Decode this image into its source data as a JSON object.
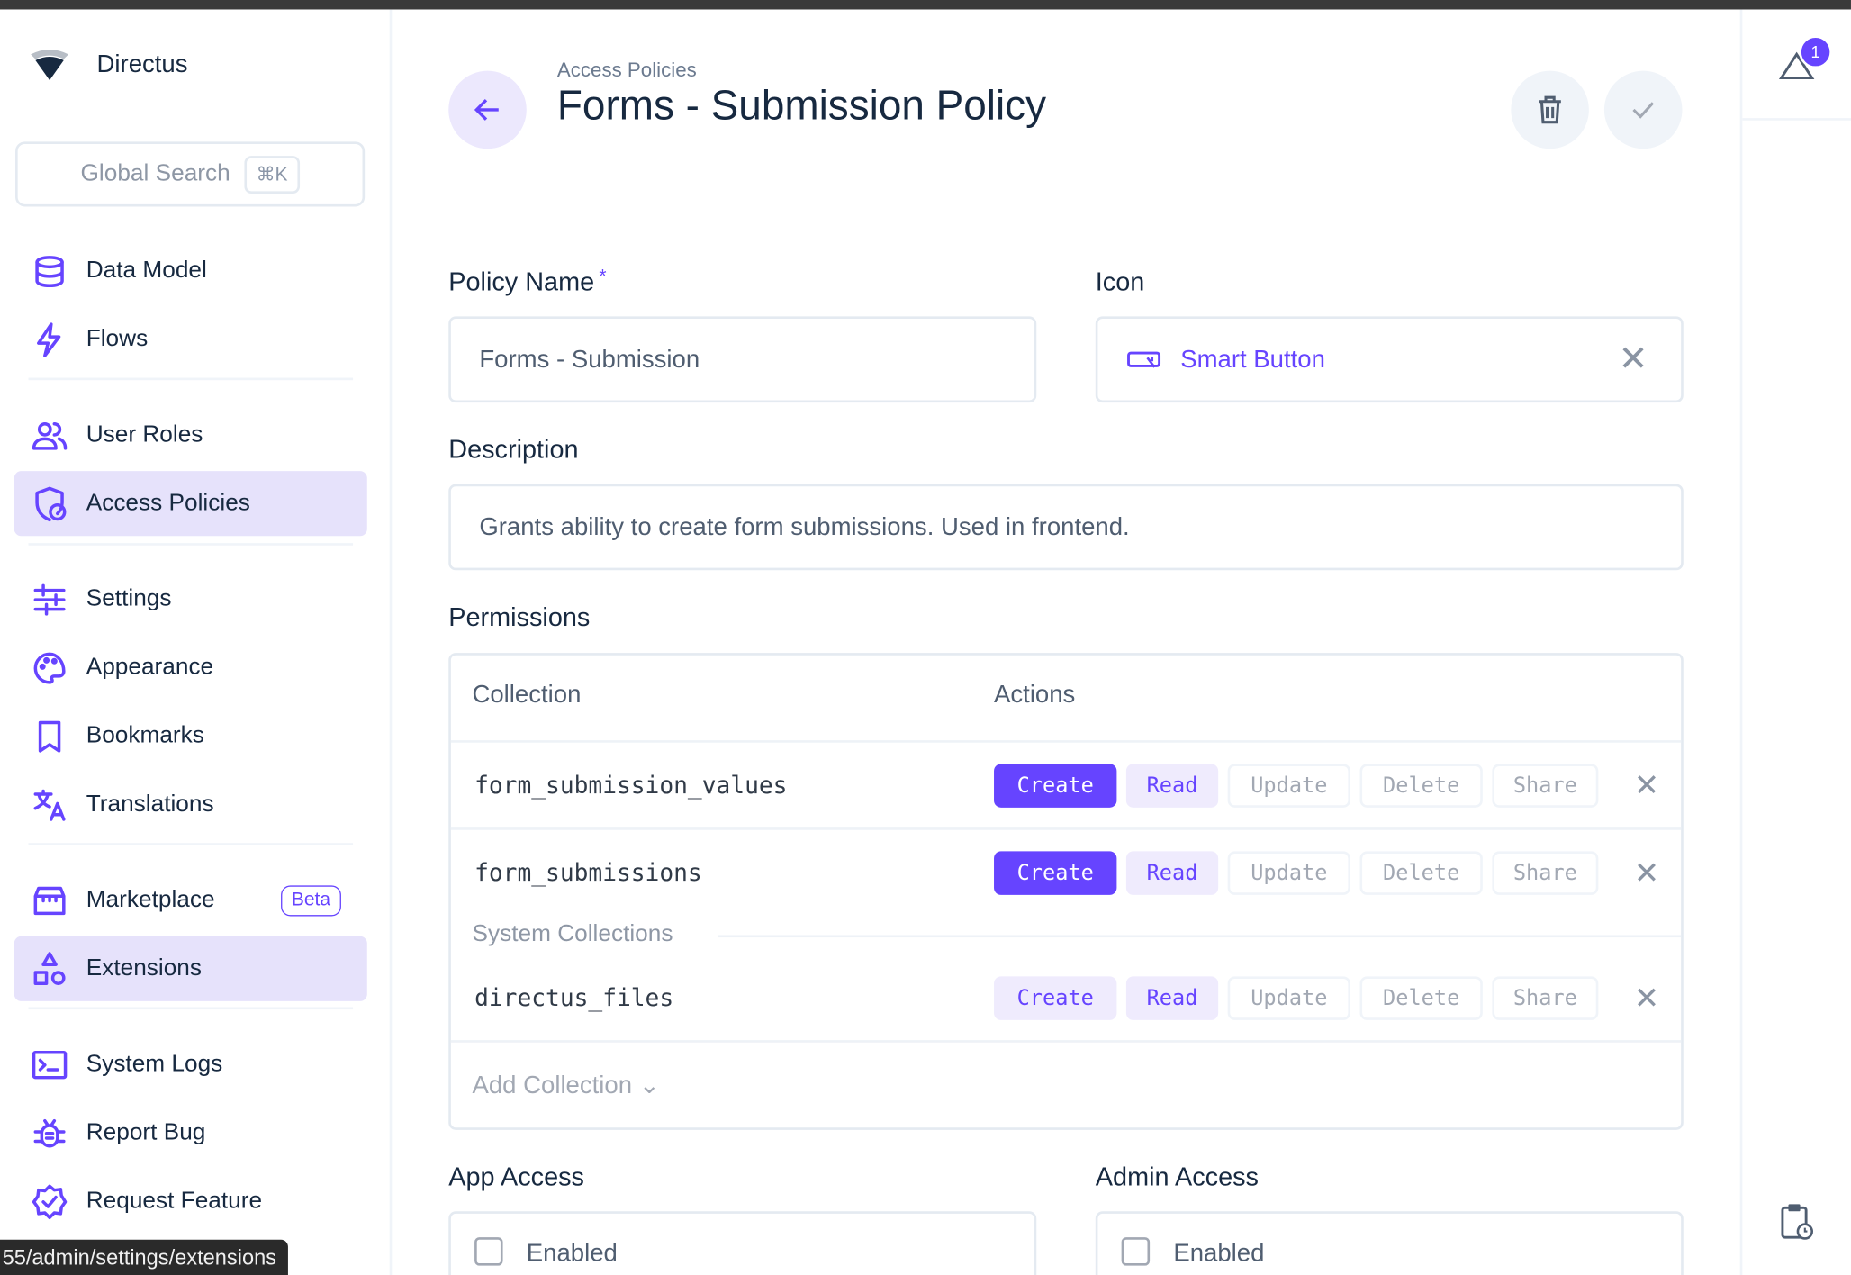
{
  "app": {
    "name": "Directus"
  },
  "sidebar": {
    "search": {
      "placeholder": "Global Search",
      "shortcut": "⌘K"
    },
    "items": [
      {
        "label": "Data Model",
        "icon": "database-icon"
      },
      {
        "label": "Flows",
        "icon": "bolt-icon"
      },
      {
        "label": "User Roles",
        "icon": "users-icon"
      },
      {
        "label": "Access Policies",
        "icon": "shield-person-icon",
        "active": true
      },
      {
        "label": "Settings",
        "icon": "sliders-icon"
      },
      {
        "label": "Appearance",
        "icon": "palette-icon"
      },
      {
        "label": "Bookmarks",
        "icon": "bookmark-icon"
      },
      {
        "label": "Translations",
        "icon": "translate-icon"
      },
      {
        "label": "Marketplace",
        "icon": "store-icon",
        "badge": "Beta"
      },
      {
        "label": "Extensions",
        "icon": "shapes-icon",
        "hover": true
      },
      {
        "label": "System Logs",
        "icon": "terminal-icon"
      },
      {
        "label": "Report Bug",
        "icon": "bug-icon"
      },
      {
        "label": "Request Feature",
        "icon": "verified-icon"
      }
    ]
  },
  "status_url": "55/admin/settings/extensions",
  "header": {
    "breadcrumb": "Access Policies",
    "title": "Forms - Submission Policy"
  },
  "form": {
    "policy_name": {
      "label": "Policy Name",
      "required": "*",
      "value": "Forms - Submission"
    },
    "icon": {
      "label": "Icon",
      "value": "Smart Button"
    },
    "description": {
      "label": "Description",
      "value": "Grants ability to create form submissions. Used in frontend."
    },
    "permissions": {
      "label": "Permissions",
      "headers": {
        "collection": "Collection",
        "actions": "Actions"
      },
      "action_labels": [
        "Create",
        "Read",
        "Update",
        "Delete",
        "Share"
      ],
      "rows": [
        {
          "collection": "form_submission_values",
          "states": [
            "full",
            "partial",
            "none",
            "none",
            "none"
          ]
        },
        {
          "collection": "form_submissions",
          "states": [
            "full",
            "partial",
            "none",
            "none",
            "none"
          ]
        }
      ],
      "system_label": "System Collections",
      "system_rows": [
        {
          "collection": "directus_files",
          "states": [
            "partial",
            "partial",
            "none",
            "none",
            "none"
          ]
        }
      ],
      "add_collection": "Add Collection"
    },
    "app_access": {
      "label": "App Access",
      "checkbox": "Enabled",
      "checked": false
    },
    "admin_access": {
      "label": "Admin Access",
      "checkbox": "Enabled",
      "checked": false
    }
  },
  "notifications": {
    "count": "1"
  },
  "colors": {
    "accent": "#6644ff",
    "text": "#172940"
  }
}
